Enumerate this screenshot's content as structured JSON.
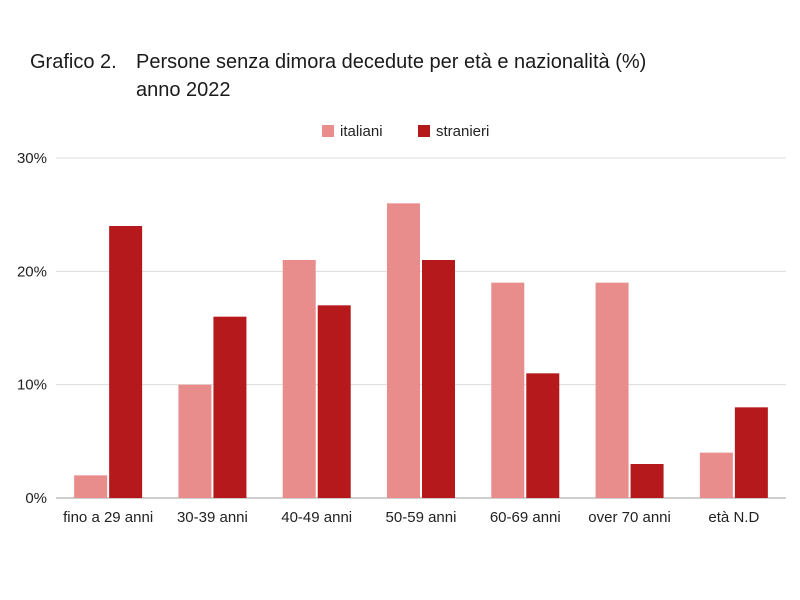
{
  "header": {
    "title_prefix": "Grafico 2.",
    "title_line1": "Persone senza dimora decedute per età e nazionalità (%)",
    "title_line2": "anno 2022"
  },
  "chart_data": {
    "type": "bar",
    "title": "Grafico 2.  Persone senza dimora decedute per età e nazionalità (%) anno 2022",
    "categories": [
      "fino a 29 anni",
      "30-39 anni",
      "40-49 anni",
      "50-59 anni",
      "60-69 anni",
      "over 70 anni",
      "età N.D"
    ],
    "series": [
      {
        "name": "italiani",
        "color": "#e88c8c",
        "values": [
          2,
          10,
          21,
          26,
          19,
          19,
          4
        ]
      },
      {
        "name": "stranieri",
        "color": "#b5191b",
        "values": [
          24,
          16,
          17,
          21,
          11,
          3,
          8
        ]
      }
    ],
    "ylim": [
      0,
      30
    ],
    "yticks": [
      0,
      10,
      20,
      30
    ],
    "ytick_labels": [
      "0%",
      "10%",
      "20%",
      "30%"
    ],
    "grid": true,
    "legend_position": "top-center"
  }
}
